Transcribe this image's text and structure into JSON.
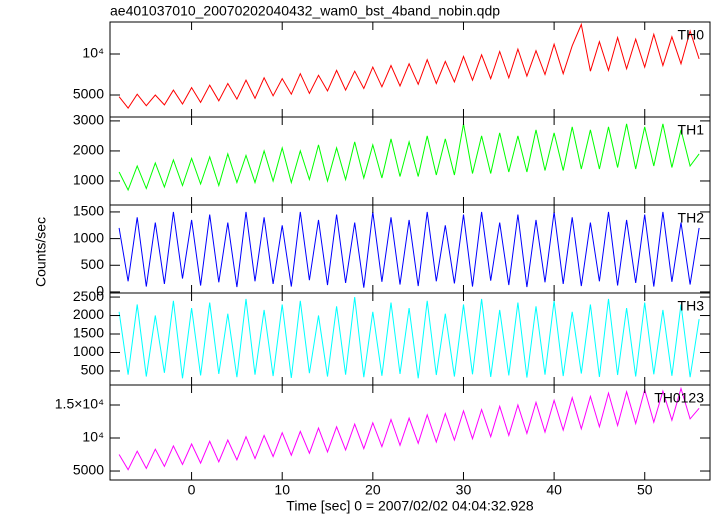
{
  "title": "ae401037010_20070202040432_wam0_bst_4band_nobin.qdp",
  "ylabel": "Counts/sec",
  "xlabel": "Time [sec] 0 = 2007/02/02 04:04:32.928",
  "chart_data": [
    {
      "type": "line",
      "x": [
        -8,
        -7,
        -6,
        -5,
        -4,
        -3,
        -2,
        -1,
        0,
        1,
        2,
        3,
        4,
        5,
        6,
        7,
        8,
        9,
        10,
        11,
        12,
        13,
        14,
        15,
        16,
        17,
        18,
        19,
        20,
        21,
        22,
        23,
        24,
        25,
        26,
        27,
        28,
        29,
        30,
        31,
        32,
        33,
        34,
        35,
        36,
        37,
        38,
        39,
        40,
        41,
        42,
        43,
        44,
        45,
        46,
        47,
        48,
        49,
        50,
        51,
        52,
        53,
        54,
        55,
        56
      ],
      "series": [
        {
          "name": "TH0",
          "color": "#ff0000",
          "values": [
            4800,
            3400,
            5100,
            3700,
            5000,
            3800,
            5600,
            3900,
            5900,
            4100,
            6200,
            4300,
            6400,
            4500,
            6800,
            4600,
            7100,
            4900,
            7000,
            5100,
            7600,
            5200,
            7400,
            5500,
            8000,
            5600,
            7900,
            5800,
            8400,
            6000,
            8600,
            6100,
            8800,
            6300,
            9300,
            6400,
            9100,
            6600,
            9700,
            6800,
            9900,
            7000,
            10300,
            7100,
            10600,
            7300,
            10400,
            7500,
            11200,
            7600,
            11000,
            13600,
            7900,
            11500,
            8000,
            12000,
            8200,
            11800,
            8400,
            12400,
            8600,
            12100,
            8800,
            12800,
            9400
          ]
        }
      ],
      "xlim": [
        -9,
        57.2
      ],
      "xticks": [
        0,
        10,
        20,
        30,
        40,
        50
      ],
      "ylim": [
        2320,
        13900
      ],
      "yticks": [
        5000,
        {
          "value": 10000,
          "label": "10⁴"
        }
      ]
    },
    {
      "type": "line",
      "x": [
        -8,
        -7,
        -6,
        -5,
        -4,
        -3,
        -2,
        -1,
        0,
        1,
        2,
        3,
        4,
        5,
        6,
        7,
        8,
        9,
        10,
        11,
        12,
        13,
        14,
        15,
        16,
        17,
        18,
        19,
        20,
        21,
        22,
        23,
        24,
        25,
        26,
        27,
        28,
        29,
        30,
        31,
        32,
        33,
        34,
        35,
        36,
        37,
        38,
        39,
        40,
        41,
        42,
        43,
        44,
        45,
        46,
        47,
        48,
        49,
        50,
        51,
        52,
        53,
        54,
        55,
        56
      ],
      "series": [
        {
          "name": "TH1",
          "color": "#00ff00",
          "values": [
            1300,
            700,
            1500,
            750,
            1600,
            800,
            1700,
            850,
            1750,
            900,
            1800,
            850,
            1900,
            950,
            1850,
            950,
            2000,
            1000,
            2100,
            950,
            2000,
            1050,
            2200,
            1000,
            2100,
            1050,
            2300,
            1100,
            2200,
            1100,
            2400,
            1150,
            2300,
            1150,
            2500,
            1200,
            2400,
            1200,
            2900,
            1250,
            2500,
            1250,
            2600,
            1300,
            2500,
            1300,
            2700,
            1350,
            2600,
            1350,
            2800,
            1400,
            2700,
            1400,
            2800,
            1450,
            2900,
            1400,
            2800,
            1500,
            2900,
            1450,
            2700,
            1500,
            1900
          ]
        }
      ],
      "xlim": [
        -9,
        57.2
      ],
      "xticks": [
        0,
        10,
        20,
        30,
        40,
        50
      ],
      "ylim": [
        200,
        3130
      ],
      "yticks": [
        1000,
        2000,
        3000
      ]
    },
    {
      "type": "line",
      "x": [
        -8,
        -7,
        -6,
        -5,
        -4,
        -3,
        -2,
        -1,
        0,
        1,
        2,
        3,
        4,
        5,
        6,
        7,
        8,
        9,
        10,
        11,
        12,
        13,
        14,
        15,
        16,
        17,
        18,
        19,
        20,
        21,
        22,
        23,
        24,
        25,
        26,
        27,
        28,
        29,
        30,
        31,
        32,
        33,
        34,
        35,
        36,
        37,
        38,
        39,
        40,
        41,
        42,
        43,
        44,
        45,
        46,
        47,
        48,
        49,
        50,
        51,
        52,
        53,
        54,
        55,
        56
      ],
      "series": [
        {
          "name": "TH2",
          "color": "#0000ff",
          "values": [
            1200,
            200,
            1400,
            100,
            1300,
            150,
            1500,
            250,
            1350,
            120,
            1450,
            180,
            1300,
            90,
            1500,
            200,
            1400,
            150,
            1250,
            100,
            1500,
            220,
            1350,
            130,
            1450,
            170,
            1300,
            80,
            1500,
            190,
            1400,
            140,
            1350,
            110,
            1500,
            200,
            1250,
            160,
            1450,
            100,
            1500,
            210,
            1300,
            130,
            1450,
            90,
            1350,
            180,
            1500,
            150,
            1400,
            110,
            1300,
            200,
            1500,
            120,
            1350,
            170,
            1450,
            100,
            1500,
            190,
            1300,
            140,
            1200
          ]
        }
      ],
      "xlim": [
        -9,
        57.2
      ],
      "xticks": [
        0,
        10,
        20,
        30,
        40,
        50
      ],
      "ylim": [
        -20,
        1630
      ],
      "yticks": [
        0,
        500,
        1000,
        1500
      ]
    },
    {
      "type": "line",
      "x": [
        -8,
        -7,
        -6,
        -5,
        -4,
        -3,
        -2,
        -1,
        0,
        1,
        2,
        3,
        4,
        5,
        6,
        7,
        8,
        9,
        10,
        11,
        12,
        13,
        14,
        15,
        16,
        17,
        18,
        19,
        20,
        21,
        22,
        23,
        24,
        25,
        26,
        27,
        28,
        29,
        30,
        31,
        32,
        33,
        34,
        35,
        36,
        37,
        38,
        39,
        40,
        41,
        42,
        43,
        44,
        45,
        46,
        47,
        48,
        49,
        50,
        51,
        52,
        53,
        54,
        55,
        56
      ],
      "series": [
        {
          "name": "TH3",
          "color": "#00ffff",
          "values": [
            2100,
            400,
            2300,
            350,
            2000,
            450,
            2400,
            300,
            2200,
            380,
            2350,
            420,
            2050,
            330,
            2450,
            400,
            2150,
            360,
            2300,
            310,
            2400,
            440,
            2000,
            350,
            2250,
            400,
            2500,
            330,
            2100,
            370,
            2350,
            420,
            2200,
            300,
            2400,
            390,
            2050,
            350,
            2300,
            410,
            2450,
            340,
            2150,
            380,
            2350,
            320,
            2250,
            400,
            2400,
            360,
            2100,
            430,
            2300,
            340,
            2450,
            390,
            2200,
            350,
            2350,
            410,
            2150,
            370,
            2300,
            330,
            1900
          ]
        }
      ],
      "xlim": [
        -9,
        57.2
      ],
      "xticks": [
        0,
        10,
        20,
        30,
        40,
        50
      ],
      "ylim": [
        120,
        2610
      ],
      "yticks": [
        500,
        1000,
        1500,
        2000,
        2500
      ]
    },
    {
      "type": "line",
      "x": [
        -8,
        -7,
        -6,
        -5,
        -4,
        -3,
        -2,
        -1,
        0,
        1,
        2,
        3,
        4,
        5,
        6,
        7,
        8,
        9,
        10,
        11,
        12,
        13,
        14,
        15,
        16,
        17,
        18,
        19,
        20,
        21,
        22,
        23,
        24,
        25,
        26,
        27,
        28,
        29,
        30,
        31,
        32,
        33,
        34,
        35,
        36,
        37,
        38,
        39,
        40,
        41,
        42,
        43,
        44,
        45,
        46,
        47,
        48,
        49,
        50,
        51,
        52,
        53,
        54,
        55,
        56
      ],
      "series": [
        {
          "name": "TH0123",
          "color": "#ff00ff",
          "values": [
            7500,
            5200,
            8000,
            5400,
            8300,
            5700,
            8800,
            6000,
            9100,
            6200,
            9500,
            6400,
            9700,
            6700,
            10200,
            6900,
            10400,
            7200,
            10800,
            7400,
            11000,
            7700,
            11500,
            7900,
            11700,
            8200,
            12100,
            8400,
            12300,
            8700,
            12800,
            8900,
            13000,
            9200,
            13500,
            9400,
            13700,
            9700,
            14100,
            9900,
            14300,
            10200,
            14800,
            10400,
            15000,
            10700,
            15400,
            10900,
            15700,
            11200,
            16100,
            11400,
            16300,
            11700,
            16800,
            11900,
            17000,
            12200,
            17300,
            12400,
            17100,
            12700,
            17500,
            12900,
            14500
          ]
        }
      ],
      "xlim": [
        -9,
        57.2
      ],
      "xticks": [
        0,
        10,
        20,
        30,
        40,
        50
      ],
      "ylim": [
        3640,
        18030
      ],
      "yticks": [
        5000,
        {
          "value": 10000,
          "label": "10⁴"
        },
        {
          "value": 15000,
          "label": "1.5×10⁴"
        }
      ]
    }
  ]
}
